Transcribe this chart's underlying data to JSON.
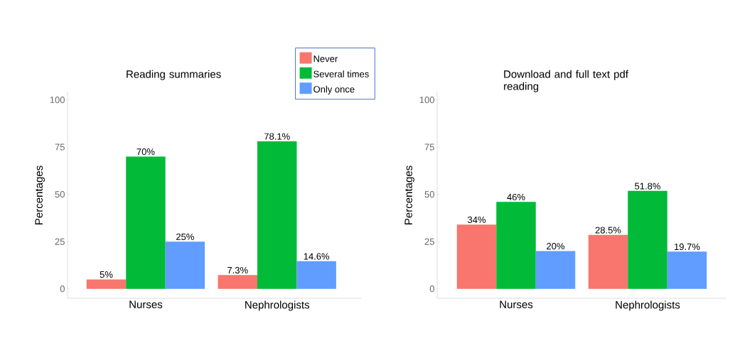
{
  "chart_data": [
    {
      "type": "bar",
      "title": "Reading  summaries",
      "ylabel": "Percentages",
      "categories": [
        "Nurses",
        "Nephrologists"
      ],
      "ylim": [
        -5,
        104
      ],
      "yticks": [
        0,
        25,
        50,
        75,
        100
      ],
      "legend": "top right",
      "series": [
        {
          "name": "Never",
          "color": "#f8766d",
          "values": [
            5,
            7.3
          ],
          "value_labels": [
            "5%",
            "7.3%"
          ]
        },
        {
          "name": "Several times",
          "color": "#00ba38",
          "values": [
            70,
            78.1
          ],
          "value_labels": [
            "70%",
            "78.1%"
          ]
        },
        {
          "name": "Only once",
          "color": "#619cff",
          "values": [
            25,
            14.6
          ],
          "value_labels": [
            "25%",
            "14.6%"
          ]
        }
      ]
    },
    {
      "type": "bar",
      "title": "Download and full text pdf reading",
      "ylabel": "Percentages",
      "categories": [
        "Nurses",
        "Nephrologists"
      ],
      "ylim": [
        -5,
        104
      ],
      "yticks": [
        0,
        25,
        50,
        75,
        100
      ],
      "series": [
        {
          "color": "#f8766d",
          "values": [
            34,
            28.5
          ],
          "value_labels": [
            "34%",
            "28.5%"
          ]
        },
        {
          "color": "#00ba38",
          "values": [
            46,
            51.8
          ],
          "value_labels": [
            "46%",
            "51.8%"
          ]
        },
        {
          "color": "#619cff",
          "values": [
            20,
            19.7
          ],
          "value_labels": [
            "20%",
            "19.7%"
          ]
        }
      ]
    }
  ]
}
